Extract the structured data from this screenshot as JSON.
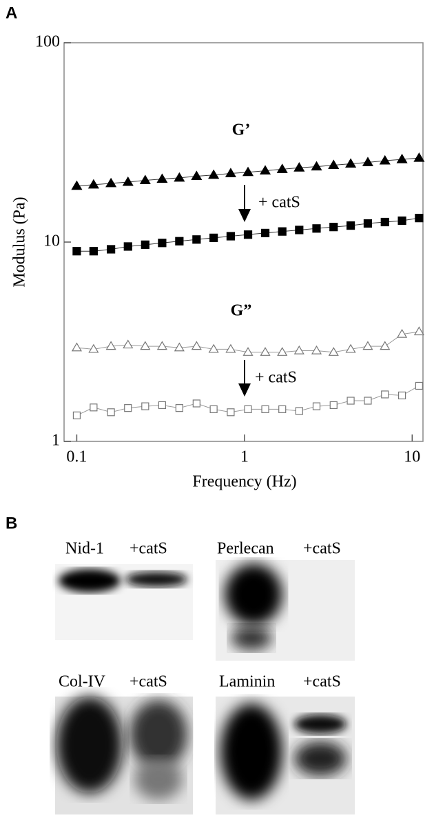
{
  "chart_data": {
    "type": "line",
    "panel_label": "A",
    "x_label": "Frequency (Hz)",
    "y_label": "Modulus (Pa)",
    "x_log": true,
    "y_log": true,
    "xlim": [
      0.084,
      11.6
    ],
    "ylim": [
      1,
      100
    ],
    "xticks": [
      0.1,
      1,
      10
    ],
    "yticks": [
      1,
      10,
      100
    ],
    "x": [
      0.1,
      0.126,
      0.16,
      0.202,
      0.256,
      0.323,
      0.409,
      0.518,
      0.655,
      0.828,
      1.05,
      1.33,
      1.68,
      2.12,
      2.69,
      3.4,
      4.3,
      5.44,
      6.88,
      8.7,
      11.0
    ],
    "series": [
      {
        "color": "#000000",
        "marker": "triangle",
        "filled": true,
        "values": [
          19.1,
          19.4,
          19.7,
          20.0,
          20.4,
          20.7,
          21.0,
          21.4,
          21.7,
          22.1,
          22.4,
          22.8,
          23.2,
          23.6,
          23.9,
          24.3,
          24.7,
          25.1,
          25.6,
          26.0,
          26.4
        ]
      },
      {
        "color": "#000000",
        "marker": "square",
        "filled": true,
        "values": [
          9.0,
          9.0,
          9.2,
          9.5,
          9.7,
          9.9,
          10.1,
          10.3,
          10.5,
          10.7,
          10.9,
          11.1,
          11.3,
          11.5,
          11.7,
          11.9,
          12.1,
          12.4,
          12.6,
          12.8,
          13.2
        ]
      },
      {
        "color": "#000000",
        "marker": "triangle",
        "filled": false,
        "values": [
          2.95,
          2.9,
          3.0,
          3.05,
          3.0,
          3.0,
          2.95,
          3.0,
          2.9,
          2.9,
          2.8,
          2.8,
          2.8,
          2.85,
          2.85,
          2.8,
          2.9,
          3.0,
          3.0,
          3.45,
          3.55
        ]
      },
      {
        "color": "#000000",
        "marker": "square",
        "filled": false,
        "values": [
          1.35,
          1.48,
          1.4,
          1.47,
          1.5,
          1.52,
          1.47,
          1.55,
          1.45,
          1.4,
          1.45,
          1.45,
          1.45,
          1.42,
          1.5,
          1.52,
          1.6,
          1.6,
          1.72,
          1.7,
          1.9
        ]
      }
    ],
    "annotations": [
      "G’",
      "+ catS",
      "G”",
      "+ catS"
    ]
  },
  "panel_b": {
    "label": "B",
    "blots": [
      {
        "protein": "Nid-1",
        "treatment": "+catS"
      },
      {
        "protein": "Perlecan",
        "treatment": "+catS"
      },
      {
        "protein": "Col-IV",
        "treatment": "+catS"
      },
      {
        "protein": "Laminin",
        "treatment": "+catS"
      }
    ]
  }
}
